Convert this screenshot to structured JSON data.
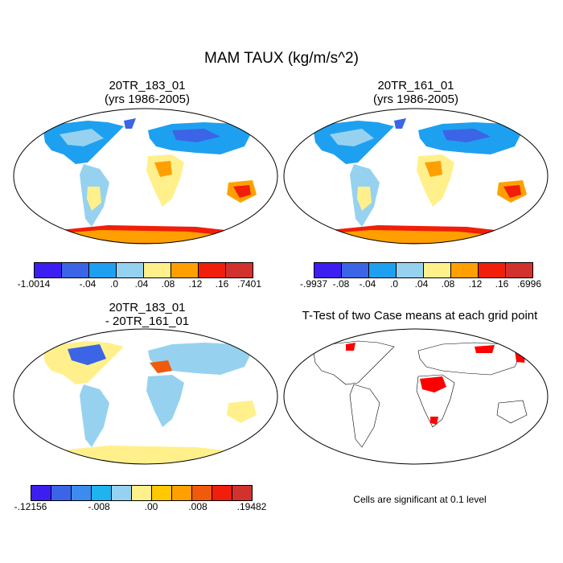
{
  "title": "MAM TAUX (kg/m/s^2)",
  "panels": [
    {
      "title": "20TR_183_01",
      "subtitle": "(yrs 1986-2005)"
    },
    {
      "title": "20TR_161_01",
      "subtitle": "(yrs 1986-2005)"
    },
    {
      "title": "20TR_183_01",
      "subtitle": "- 20TR_161_01"
    },
    {
      "title": "T-Test of two Case means at each grid point",
      "subtitle": ""
    }
  ],
  "colors": {
    "bins": [
      "#3c1ef0",
      "#3c64e6",
      "#1ea0f0",
      "#96d2f0",
      "#fff08c",
      "#ffa000",
      "#f01e0a",
      "#d2322d"
    ],
    "diff_bins": [
      "#3c1ef0",
      "#3c64e6",
      "#3c8cf0",
      "#1eb4f0",
      "#96d2f0",
      "#fff08c",
      "#ffc800",
      "#ffa000",
      "#f05a0a",
      "#f01e0a",
      "#d2322d"
    ],
    "significant": "#ff0000"
  },
  "legends": {
    "panel1": [
      "-1.0014",
      "-.04",
      ".0",
      ".04",
      ".08",
      ".12",
      ".16",
      ".7401"
    ],
    "panel2": [
      "-.9937",
      "-.08",
      "-.04",
      ".0",
      ".04",
      ".08",
      ".12",
      ".16",
      ".6996"
    ],
    "panel3": [
      "-.12156",
      "-.008",
      ".00",
      ".008",
      ".19482"
    ]
  },
  "note": "Cells are significant at 0.1 level"
}
